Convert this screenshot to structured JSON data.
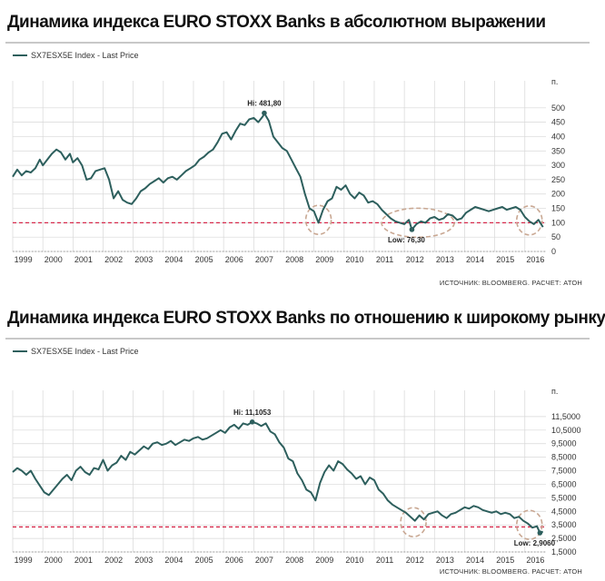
{
  "colors": {
    "line": "#2d5f5d",
    "ref_line": "#d6294a",
    "ellipse": "#c9a893",
    "grid": "#d7d7d7",
    "dots": "#999999"
  },
  "chart_data": [
    {
      "type": "line",
      "title": "Динамика индекса EURO STOXX Banks в абсолютном выражении",
      "legend": "SX7ESX5E Index - Last Price",
      "unit": "п.",
      "source": "ИСТОЧНИК: BLOOMBERG. РАСЧЕТ: АТОН",
      "grid": true,
      "legend_position": "top-left",
      "y_axis_side": "right",
      "xlim": [
        1999.0,
        2016.7
      ],
      "ylim": [
        0,
        550
      ],
      "y_ticks": [
        0,
        50,
        100,
        150,
        200,
        250,
        300,
        350,
        400,
        450,
        500
      ],
      "y_tick_labels": [
        "0",
        "50",
        "100",
        "150",
        "200",
        "250",
        "300",
        "350",
        "400",
        "450",
        "500"
      ],
      "x_tick_labels": [
        "1999",
        "2000",
        "2001",
        "2002",
        "2003",
        "2004",
        "2005",
        "2006",
        "2007",
        "2008",
        "2009",
        "2010",
        "2011",
        "2012",
        "2013",
        "2014",
        "2015",
        "2016"
      ],
      "reference_line": 100,
      "annotations": [
        {
          "text": "Hi: 481,80",
          "x": 2007.35,
          "y": 481.8
        },
        {
          "text": "Low: 76,30",
          "x": 2012.25,
          "y": 76.3
        }
      ],
      "highlight_ellipses": [
        {
          "x_center": 2009.15,
          "y_center": 110
        },
        {
          "x_center": 2012.45,
          "y_center": 100
        },
        {
          "x_center": 2016.15,
          "y_center": 108
        }
      ],
      "x": [
        1999.0,
        1999.15,
        1999.3,
        1999.45,
        1999.6,
        1999.75,
        1999.9,
        2000.0,
        2000.15,
        2000.3,
        2000.45,
        2000.6,
        2000.75,
        2000.9,
        2001.0,
        2001.15,
        2001.3,
        2001.45,
        2001.6,
        2001.75,
        2001.9,
        2002.05,
        2002.2,
        2002.35,
        2002.5,
        2002.65,
        2002.8,
        2002.95,
        2003.1,
        2003.25,
        2003.4,
        2003.55,
        2003.7,
        2003.85,
        2004.0,
        2004.15,
        2004.3,
        2004.45,
        2004.6,
        2004.75,
        2004.9,
        2005.05,
        2005.2,
        2005.35,
        2005.5,
        2005.65,
        2005.8,
        2005.95,
        2006.1,
        2006.25,
        2006.4,
        2006.55,
        2006.7,
        2006.85,
        2007.0,
        2007.15,
        2007.3,
        2007.35,
        2007.5,
        2007.65,
        2007.8,
        2007.95,
        2008.1,
        2008.25,
        2008.4,
        2008.55,
        2008.7,
        2008.85,
        2009.0,
        2009.15,
        2009.3,
        2009.45,
        2009.6,
        2009.75,
        2009.9,
        2010.05,
        2010.2,
        2010.35,
        2010.5,
        2010.65,
        2010.8,
        2010.95,
        2011.1,
        2011.25,
        2011.4,
        2011.55,
        2011.7,
        2011.85,
        2012.0,
        2012.15,
        2012.25,
        2012.4,
        2012.55,
        2012.7,
        2012.85,
        2013.0,
        2013.15,
        2013.3,
        2013.45,
        2013.6,
        2013.75,
        2013.9,
        2014.05,
        2014.2,
        2014.35,
        2014.5,
        2014.65,
        2014.8,
        2014.95,
        2015.1,
        2015.25,
        2015.4,
        2015.55,
        2015.7,
        2015.85,
        2016.0,
        2016.15,
        2016.3,
        2016.45,
        2016.6
      ],
      "values": [
        260,
        285,
        265,
        280,
        275,
        290,
        320,
        300,
        320,
        340,
        355,
        345,
        320,
        340,
        310,
        325,
        300,
        250,
        255,
        280,
        285,
        290,
        250,
        185,
        210,
        180,
        170,
        165,
        185,
        210,
        220,
        235,
        245,
        255,
        240,
        255,
        260,
        250,
        265,
        280,
        290,
        300,
        320,
        330,
        345,
        355,
        380,
        410,
        415,
        390,
        420,
        445,
        440,
        460,
        465,
        450,
        470,
        481.8,
        455,
        400,
        380,
        360,
        350,
        320,
        290,
        260,
        200,
        150,
        140,
        100,
        145,
        175,
        185,
        225,
        215,
        230,
        200,
        185,
        205,
        195,
        170,
        175,
        165,
        145,
        130,
        115,
        105,
        100,
        95,
        110,
        76.3,
        95,
        105,
        100,
        115,
        120,
        110,
        115,
        130,
        125,
        110,
        115,
        135,
        145,
        155,
        150,
        145,
        140,
        145,
        150,
        155,
        145,
        150,
        155,
        145,
        120,
        105,
        95,
        110,
        85
      ]
    },
    {
      "type": "line",
      "title": "Динамика индекса EURO STOXX Banks по отношению к широкому рынку",
      "legend": "SX7ESX5E Index - Last Price",
      "unit": "п.",
      "source": "ИСТОЧНИК: BLOOMBERG. РАСЧЕТ: АТОН",
      "grid": true,
      "legend_position": "top-left",
      "y_axis_side": "right",
      "xlim": [
        1999.0,
        2016.7
      ],
      "ylim": [
        1.5,
        12.5
      ],
      "y_ticks": [
        1.5,
        2.5,
        3.5,
        4.5,
        5.5,
        6.5,
        7.5,
        8.5,
        9.5,
        10.5,
        11.5
      ],
      "y_tick_labels": [
        "1,5000",
        "2,5000",
        "3,5000",
        "4,5000",
        "5,5000",
        "6,5000",
        "7,5000",
        "8,5000",
        "9,5000",
        "10,5000",
        "11,5000"
      ],
      "x_tick_labels": [
        "1999",
        "2000",
        "2001",
        "2002",
        "2003",
        "2004",
        "2005",
        "2006",
        "2007",
        "2008",
        "2009",
        "2010",
        "2011",
        "2012",
        "2013",
        "2014",
        "2015",
        "2016"
      ],
      "reference_line": 3.35,
      "annotations": [
        {
          "text": "Hi: 11,1053",
          "x": 2006.95,
          "y": 11.1053
        },
        {
          "text": "Low: 2,9060",
          "x": 2016.5,
          "y": 2.906
        }
      ],
      "highlight_ellipses": [
        {
          "x_center": 2012.3,
          "y_center": 3.7
        },
        {
          "x_center": 2016.15,
          "y_center": 3.5
        }
      ],
      "x": [
        1999.0,
        1999.15,
        1999.3,
        1999.45,
        1999.6,
        1999.75,
        1999.9,
        2000.05,
        2000.2,
        2000.35,
        2000.5,
        2000.65,
        2000.8,
        2000.95,
        2001.1,
        2001.25,
        2001.4,
        2001.55,
        2001.7,
        2001.85,
        2002.0,
        2002.15,
        2002.3,
        2002.45,
        2002.6,
        2002.75,
        2002.9,
        2003.05,
        2003.2,
        2003.35,
        2003.5,
        2003.65,
        2003.8,
        2003.95,
        2004.1,
        2004.25,
        2004.4,
        2004.55,
        2004.7,
        2004.85,
        2005.0,
        2005.15,
        2005.3,
        2005.45,
        2005.6,
        2005.75,
        2005.9,
        2006.05,
        2006.2,
        2006.35,
        2006.5,
        2006.65,
        2006.8,
        2006.95,
        2007.1,
        2007.25,
        2007.4,
        2007.55,
        2007.7,
        2007.85,
        2008.0,
        2008.15,
        2008.3,
        2008.45,
        2008.6,
        2008.75,
        2008.9,
        2009.05,
        2009.2,
        2009.35,
        2009.5,
        2009.65,
        2009.8,
        2009.95,
        2010.1,
        2010.25,
        2010.4,
        2010.55,
        2010.7,
        2010.85,
        2011.0,
        2011.15,
        2011.3,
        2011.45,
        2011.6,
        2011.75,
        2011.9,
        2012.05,
        2012.2,
        2012.35,
        2012.5,
        2012.65,
        2012.8,
        2012.95,
        2013.1,
        2013.25,
        2013.4,
        2013.55,
        2013.7,
        2013.85,
        2014.0,
        2014.15,
        2014.3,
        2014.45,
        2014.6,
        2014.75,
        2014.9,
        2015.05,
        2015.2,
        2015.35,
        2015.5,
        2015.65,
        2015.8,
        2015.95,
        2016.1,
        2016.25,
        2016.4,
        2016.5,
        2016.6
      ],
      "values": [
        7.4,
        7.7,
        7.5,
        7.2,
        7.5,
        6.9,
        6.4,
        5.9,
        5.7,
        6.1,
        6.5,
        6.9,
        7.2,
        6.8,
        7.5,
        7.8,
        7.4,
        7.2,
        7.7,
        7.6,
        8.3,
        7.5,
        7.9,
        8.1,
        8.6,
        8.3,
        8.9,
        8.7,
        9.0,
        9.3,
        9.1,
        9.5,
        9.6,
        9.4,
        9.5,
        9.7,
        9.4,
        9.6,
        9.8,
        9.7,
        9.9,
        10.0,
        9.8,
        9.9,
        10.1,
        10.3,
        10.5,
        10.3,
        10.7,
        10.9,
        10.6,
        11.0,
        10.9,
        11.1053,
        11.0,
        10.8,
        11.0,
        10.4,
        10.2,
        9.6,
        9.2,
        8.4,
        8.2,
        7.3,
        6.8,
        6.1,
        5.9,
        5.3,
        6.6,
        7.4,
        7.9,
        7.5,
        8.2,
        8.0,
        7.6,
        7.3,
        6.9,
        7.1,
        6.5,
        7.0,
        6.8,
        6.1,
        5.8,
        5.3,
        5.0,
        4.8,
        4.6,
        4.4,
        4.1,
        3.8,
        4.2,
        3.9,
        4.3,
        4.4,
        4.5,
        4.2,
        4.0,
        4.3,
        4.4,
        4.6,
        4.8,
        4.7,
        4.9,
        4.8,
        4.6,
        4.5,
        4.4,
        4.5,
        4.3,
        4.4,
        4.3,
        4.0,
        4.1,
        3.8,
        3.6,
        3.3,
        3.4,
        2.906,
        3.0
      ]
    }
  ]
}
